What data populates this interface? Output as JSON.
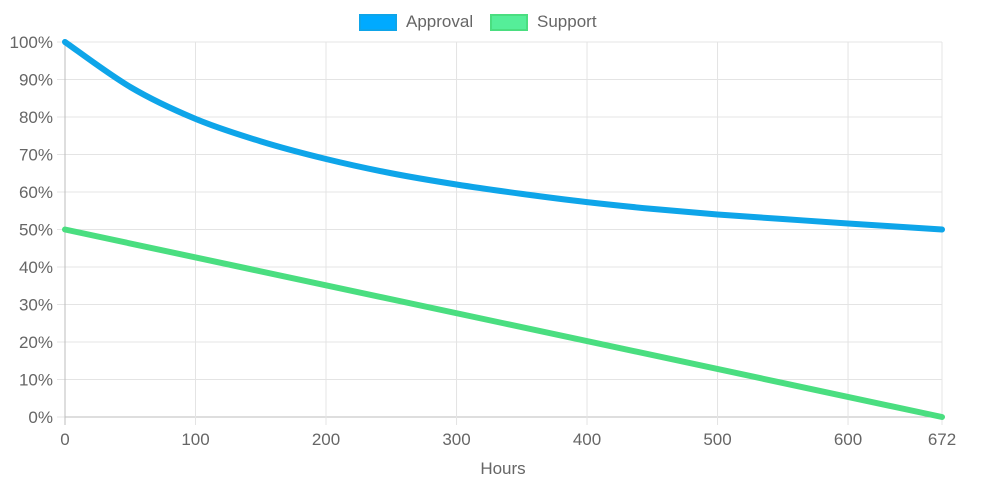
{
  "chart_data": {
    "type": "line",
    "xlabel": "Hours",
    "ylabel": "",
    "xlim": [
      0,
      672
    ],
    "ylim": [
      0,
      100
    ],
    "x_ticks": [
      "0",
      "100",
      "200",
      "300",
      "400",
      "500",
      "600",
      "672"
    ],
    "y_ticks": [
      "0%",
      "10%",
      "20%",
      "30%",
      "40%",
      "50%",
      "60%",
      "70%",
      "80%",
      "90%",
      "100%"
    ],
    "grid": true,
    "legend_position": "top",
    "series": [
      {
        "name": "Approval",
        "color": "#0ea5e9",
        "legend_fill": "#00aaff",
        "x": [
          0,
          50,
          100,
          150,
          200,
          250,
          300,
          350,
          400,
          450,
          500,
          550,
          600,
          672
        ],
        "y": [
          100,
          88,
          79.5,
          73.5,
          68.8,
          65,
          62,
          59.5,
          57.3,
          55.5,
          54,
          52.8,
          51.6,
          50
        ]
      },
      {
        "name": "Support",
        "color": "#4ade80",
        "legend_fill": "#55ee99",
        "x": [
          0,
          672
        ],
        "y": [
          50,
          0
        ]
      }
    ]
  }
}
